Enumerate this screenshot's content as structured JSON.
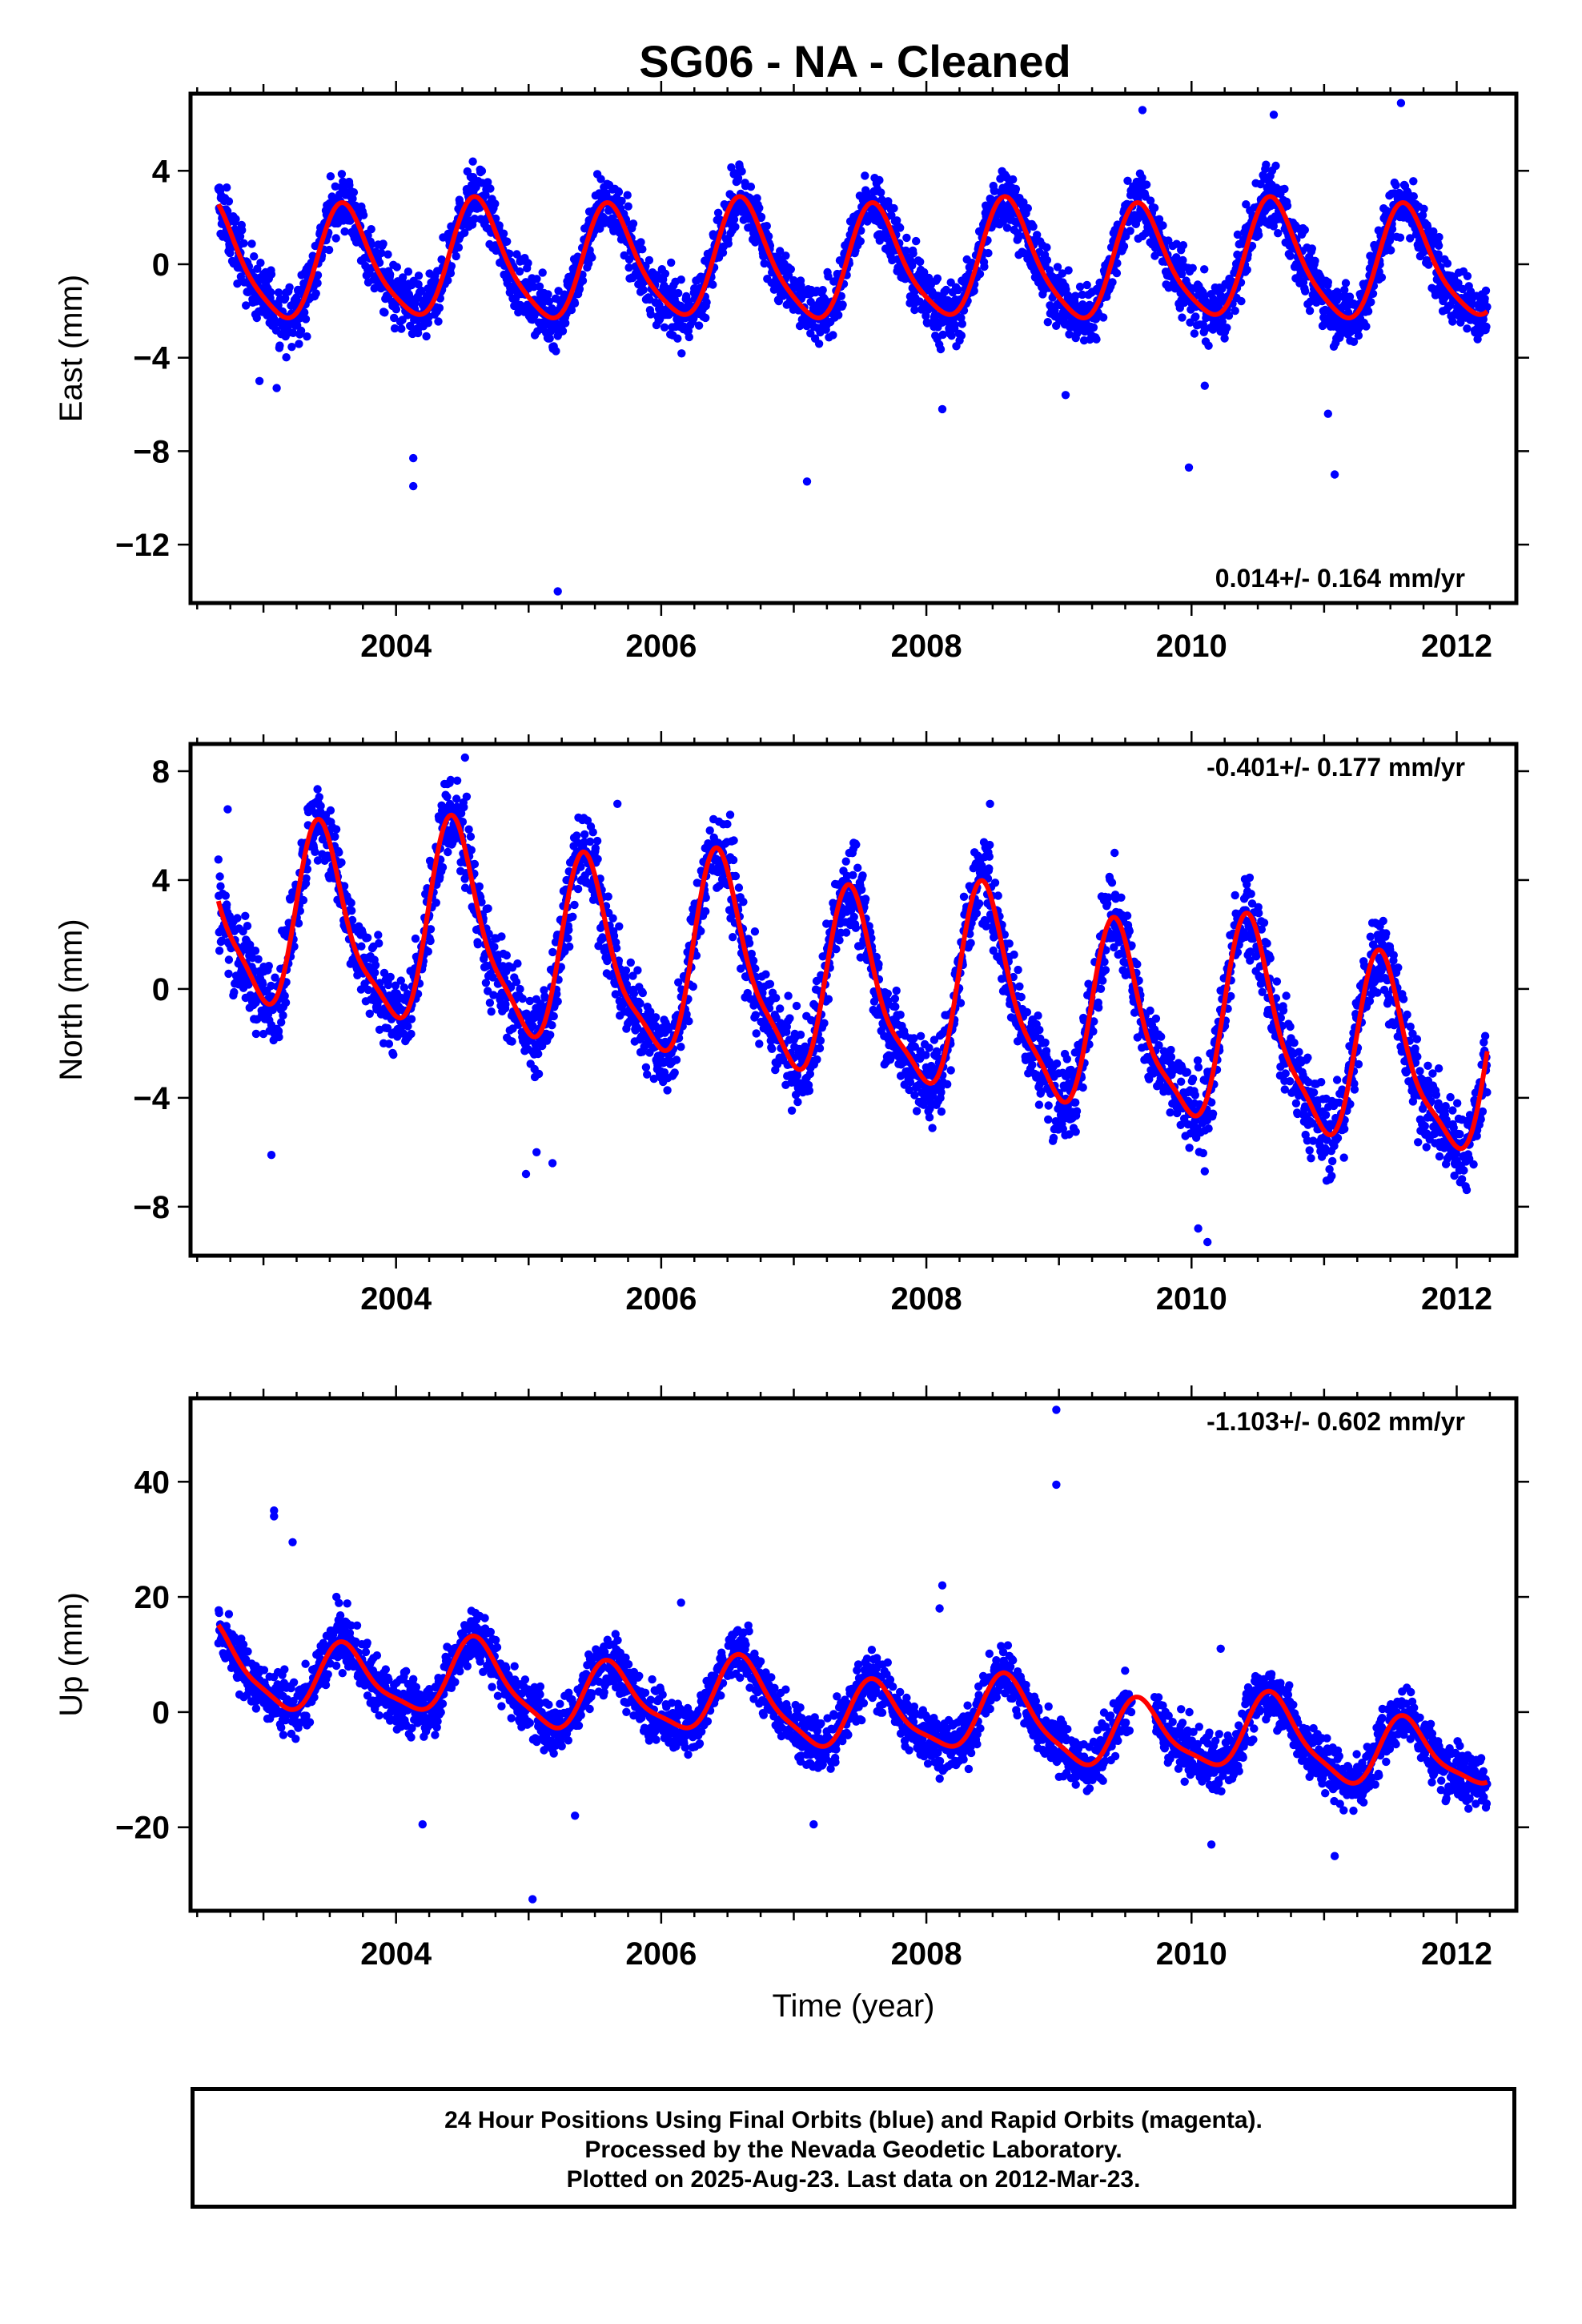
{
  "title": "SG06  - NA - Cleaned",
  "colors": {
    "points": "#0000ff",
    "fit": "#ff0000"
  },
  "chart_data": [
    {
      "type": "scatter",
      "id": "east",
      "ylabel": "East (mm)",
      "xlabel": "",
      "xlim": [
        2002.45,
        2012.45
      ],
      "ylim": [
        -14.5,
        7.3
      ],
      "xticks": [
        2004,
        2006,
        2008,
        2010,
        2012
      ],
      "yticks": [
        4,
        0,
        -4,
        -8,
        -12
      ],
      "rate_label": "0.014+/- 0.164 mm/yr",
      "rate_position": "bottom-right",
      "model": {
        "start": 2002.66,
        "end": 2012.23,
        "amplitude": 2.4,
        "peak_phase": 0.62,
        "offset": 0.45,
        "semiannual": 0.45,
        "noise": 1.1
      },
      "outliers": [
        [
          2002.97,
          -5.0
        ],
        [
          2003.1,
          -5.3
        ],
        [
          2004.13,
          -8.3
        ],
        [
          2004.13,
          -9.5
        ],
        [
          2005.22,
          -14.0
        ],
        [
          2007.1,
          -9.3
        ],
        [
          2008.12,
          -6.2
        ],
        [
          2009.05,
          -5.6
        ],
        [
          2009.63,
          6.6
        ],
        [
          2009.98,
          -8.7
        ],
        [
          2010.1,
          -5.2
        ],
        [
          2010.62,
          6.4
        ],
        [
          2011.03,
          -6.4
        ],
        [
          2011.08,
          -9.0
        ],
        [
          2011.58,
          6.9
        ]
      ],
      "gaps": [],
      "series": [
        {
          "name": "24 hour positions",
          "values": "daily positions 2002.66 to 2012.23"
        },
        {
          "name": "model fit",
          "values": "seasonal fit"
        }
      ]
    },
    {
      "type": "scatter",
      "id": "north",
      "ylabel": "North (mm)",
      "xlabel": "",
      "xlim": [
        2002.45,
        2012.45
      ],
      "ylim": [
        -9.8,
        9.0
      ],
      "xticks": [
        2004,
        2006,
        2008,
        2010,
        2012
      ],
      "yticks": [
        8,
        4,
        0,
        -4,
        -8
      ],
      "rate_label": "-0.401+/- 0.177 mm/yr",
      "rate_position": "top-right",
      "model": {
        "start": 2002.66,
        "end": 2012.23,
        "amplitude": 3.4,
        "peak_phase": 0.45,
        "offset": 1.3,
        "trend": -0.6,
        "semiannual": 0.9,
        "noise": 1.3
      },
      "outliers": [
        [
          2002.73,
          6.6
        ],
        [
          2003.06,
          -6.1
        ],
        [
          2004.52,
          8.5
        ],
        [
          2004.98,
          -6.8
        ],
        [
          2005.06,
          -6.0
        ],
        [
          2005.18,
          -6.4
        ],
        [
          2005.67,
          6.8
        ],
        [
          2006.52,
          6.4
        ],
        [
          2007.47,
          5.3
        ],
        [
          2008.48,
          6.8
        ],
        [
          2009.42,
          5.0
        ],
        [
          2010.05,
          -8.8
        ],
        [
          2010.12,
          -9.3
        ],
        [
          2010.1,
          -6.7
        ],
        [
          2011.15,
          -6.2
        ]
      ],
      "gaps": [],
      "series": [
        {
          "name": "24 hour positions",
          "values": "daily positions 2002.66 to 2012.23"
        },
        {
          "name": "model fit",
          "values": "seasonal fit"
        }
      ]
    },
    {
      "type": "scatter",
      "id": "up",
      "ylabel": "Up (mm)",
      "xlabel": "Time (year)",
      "xlim": [
        2002.45,
        2012.45
      ],
      "ylim": [
        -34.5,
        54.5
      ],
      "xticks": [
        2004,
        2006,
        2008,
        2010,
        2012
      ],
      "yticks": [
        40,
        20,
        0,
        -20
      ],
      "rate_label": "-1.103+/- 0.602 mm/yr",
      "rate_position": "top-right",
      "model": {
        "start": 2002.66,
        "end": 2012.23,
        "amplitude": 6.0,
        "peak_phase": 0.62,
        "offset": 4.5,
        "trend": -1.6,
        "semiannual": 1.5,
        "noise": 4.0
      },
      "outliers": [
        [
          2003.08,
          35.0
        ],
        [
          2003.08,
          34.0
        ],
        [
          2003.22,
          29.5
        ],
        [
          2003.55,
          20.0
        ],
        [
          2004.2,
          -19.5
        ],
        [
          2005.03,
          -32.5
        ],
        [
          2005.35,
          -18.0
        ],
        [
          2006.15,
          19.0
        ],
        [
          2007.15,
          -19.5
        ],
        [
          2008.12,
          22.0
        ],
        [
          2008.1,
          18.0
        ],
        [
          2008.98,
          52.5
        ],
        [
          2008.98,
          39.5
        ],
        [
          2010.15,
          -23.0
        ],
        [
          2010.22,
          11.0
        ],
        [
          2011.08,
          -25.0
        ]
      ],
      "gaps": [
        [
          2009.55,
          2009.72
        ]
      ],
      "series": [
        {
          "name": "24 hour positions",
          "values": "daily positions 2002.66 to 2012.23"
        },
        {
          "name": "model fit",
          "values": "seasonal fit"
        }
      ]
    }
  ],
  "footer": {
    "line1": "24 Hour Positions Using Final Orbits (blue) and Rapid Orbits (magenta).",
    "line2": "Processed by the Nevada Geodetic Laboratory.",
    "line3": "Plotted on 2025-Aug-23. Last data on 2012-Mar-23."
  }
}
